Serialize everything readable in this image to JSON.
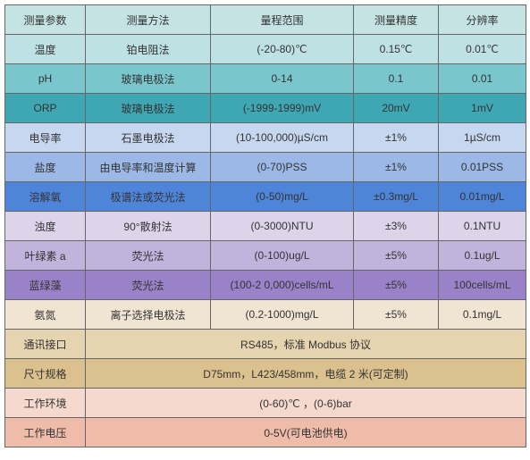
{
  "header": {
    "cols": [
      "测量参数",
      "测量方法",
      "量程范围",
      "测量精度",
      "分辨率"
    ],
    "bg": "#c5e3e3"
  },
  "rows": [
    {
      "cells": [
        "温度",
        "铂电阻法",
        "(-20-80)℃",
        "0.15℃",
        "0.01℃"
      ],
      "bg": "#bee1e3"
    },
    {
      "cells": [
        "pH",
        "玻璃电极法",
        "0-14",
        "0.1",
        "0.01"
      ],
      "bg": "#7ac6cd"
    },
    {
      "cells": [
        "ORP",
        "玻璃电极法",
        "(-1999-1999)mV",
        "20mV",
        "1mV"
      ],
      "bg": "#3ea7b3"
    },
    {
      "cells": [
        "电导率",
        "石墨电极法",
        "(10-100,000)µS/cm",
        "±1%",
        "1µS/cm"
      ],
      "bg": "#c7d7f0"
    },
    {
      "cells": [
        "盐度",
        "由电导率和温度计算",
        "(0-70)PSS",
        "±1%",
        "0.01PSS"
      ],
      "bg": "#9cb8e6"
    },
    {
      "cells": [
        "溶解氧",
        "极谱法或荧光法",
        "(0-50)mg/L",
        "±0.3mg/L",
        "0.01mg/L"
      ],
      "bg": "#4f85d9"
    },
    {
      "cells": [
        "浊度",
        "90°散射法",
        "(0-3000)NTU",
        "±3%",
        "0.1NTU"
      ],
      "bg": "#ddd4ea"
    },
    {
      "cells": [
        "叶绿素 a",
        "荧光法",
        "(0-100)ug/L",
        "±5%",
        "0.1ug/L"
      ],
      "bg": "#c1b3dc"
    },
    {
      "cells": [
        "蓝绿藻",
        "荧光法",
        "(100-2 0,000)cells/mL",
        "±5%",
        "100cells/mL"
      ],
      "bg": "#9a82c9"
    },
    {
      "cells": [
        "氨氮",
        "离子选择电极法",
        "(0.2-1000)mg/L",
        "±5%",
        "0.1mg/L"
      ],
      "bg": "#f0e5d3"
    },
    {
      "cells": [
        "通讯接口",
        "RS485，标准 Modbus 协议"
      ],
      "bg": "#e6d3b0",
      "span": true
    },
    {
      "cells": [
        "尺寸规格",
        "D75mm，L423/458mm，电缆 2 米(可定制)"
      ],
      "bg": "#dbc18d",
      "span": true
    },
    {
      "cells": [
        "工作环境",
        "(0-60)℃ ，(0-6)bar"
      ],
      "bg": "#f5d9cf",
      "span": true
    },
    {
      "cells": [
        "工作电压",
        "0-5V(可电池供电)"
      ],
      "bg": "#efbca9",
      "span": true
    }
  ]
}
